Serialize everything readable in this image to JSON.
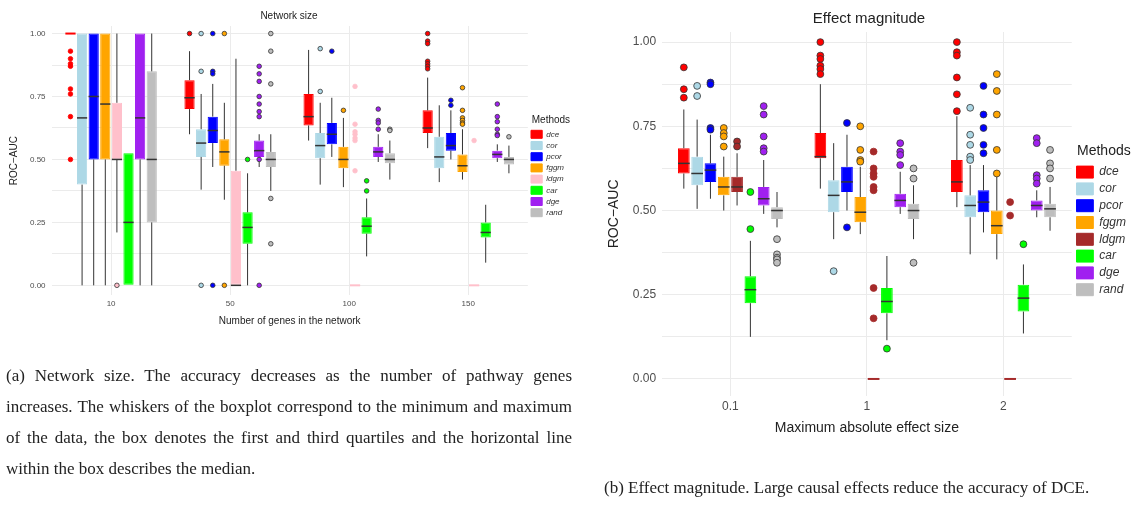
{
  "chart_data": [
    {
      "type": "box",
      "title": "Network size",
      "xlabel": "Number of genes in the network",
      "ylabel": "ROC−AUC",
      "legend_title": "Methods",
      "legend": "right",
      "grid": true,
      "categories": [
        "10",
        "50",
        "100",
        "150"
      ],
      "ylim": [
        -0.04,
        1.03
      ],
      "yticks": [
        {
          "value": 0,
          "label": "0.00"
        },
        {
          "value": 0.125,
          "label": null
        },
        {
          "value": 0.25,
          "label": "0.25"
        },
        {
          "value": 0.375,
          "label": null
        },
        {
          "value": 0.5,
          "label": "0.50"
        },
        {
          "value": 0.625,
          "label": null
        },
        {
          "value": 0.75,
          "label": "0.75"
        },
        {
          "value": 0.875,
          "label": null
        },
        {
          "value": 1,
          "label": "1.00"
        }
      ],
      "series": [
        {
          "name": "dce",
          "color": "#ff0000",
          "boxes": [
            {
              "low": 1,
              "q1": 1,
              "median": 1,
              "q3": 1,
              "high": 1,
              "outliers": [
                0.93,
                0.9,
                0.88,
                0.87,
                0.78,
                0.76,
                0.67,
                0.5
              ]
            },
            {
              "low": 0.6,
              "q1": 0.7,
              "median": 0.745,
              "q3": 0.815,
              "high": 0.93,
              "outliers": [
                1
              ]
            },
            {
              "low": 0.575,
              "q1": 0.635,
              "median": 0.67,
              "q3": 0.76,
              "high": 0.935
            },
            {
              "low": 0.545,
              "q1": 0.605,
              "median": 0.625,
              "q3": 0.695,
              "high": 0.825,
              "outliers": [
                1,
                0.97,
                0.96,
                0.89,
                0.88,
                0.87,
                0.86
              ]
            }
          ]
        },
        {
          "name": "cor",
          "color": "#add8e6",
          "boxes": [
            {
              "low": 0,
              "q1": 0.4,
              "median": 0.665,
              "q3": 1,
              "high": 1
            },
            {
              "low": 0.38,
              "q1": 0.51,
              "median": 0.565,
              "q3": 0.62,
              "high": 0.76,
              "outliers": [
                1,
                0.85,
                0
              ]
            },
            {
              "low": 0.4,
              "q1": 0.505,
              "median": 0.555,
              "q3": 0.605,
              "high": 0.725,
              "outliers": [
                0.94,
                0.77
              ]
            },
            {
              "low": 0.41,
              "q1": 0.465,
              "median": 0.51,
              "q3": 0.59,
              "high": 0.715
            }
          ]
        },
        {
          "name": "pcor",
          "color": "#0000ff",
          "boxes": [
            {
              "low": 0,
              "q1": 0.5,
              "median": 0.75,
              "q3": 1,
              "high": 1
            },
            {
              "low": 0.47,
              "q1": 0.565,
              "median": 0.615,
              "q3": 0.67,
              "high": 0.8,
              "outliers": [
                1,
                0.85,
                0.84,
                0
              ]
            },
            {
              "low": 0.51,
              "q1": 0.56,
              "median": 0.6,
              "q3": 0.645,
              "high": 0.745,
              "outliers": [
                0.93
              ]
            },
            {
              "low": 0.5,
              "q1": 0.535,
              "median": 0.555,
              "q3": 0.605,
              "high": 0.695,
              "outliers": [
                0.735,
                0.715
              ]
            }
          ]
        },
        {
          "name": "fggm",
          "color": "#ffa500",
          "boxes": [
            {
              "low": 0,
              "q1": 0.5,
              "median": 0.72,
              "q3": 1,
              "high": 1
            },
            {
              "low": 0.34,
              "q1": 0.475,
              "median": 0.53,
              "q3": 0.58,
              "high": 0.725,
              "outliers": [
                1,
                0
              ]
            },
            {
              "low": 0.39,
              "q1": 0.465,
              "median": 0.5,
              "q3": 0.55,
              "high": 0.665,
              "outliers": [
                0.695
              ]
            },
            {
              "low": 0.42,
              "q1": 0.45,
              "median": 0.475,
              "q3": 0.52,
              "high": 0.62,
              "outliers": [
                0.785,
                0.695,
                0.665,
                0.655,
                0.645,
                0.64
              ]
            }
          ]
        },
        {
          "name": "ldgm",
          "color": "#ffc0cb",
          "boxes": [
            {
              "low": 0.21,
              "q1": 0.5,
              "median": 0.5,
              "q3": 0.725,
              "high": 1,
              "outliers": [
                0
              ]
            },
            {
              "low": 0,
              "q1": 0,
              "median": 0,
              "q3": 0.455,
              "high": 0.9
            },
            {
              "low": 0,
              "q1": 0,
              "median": 0,
              "q3": 0,
              "high": 0,
              "outliers": [
                0.79,
                0.64,
                0.61,
                0.6,
                0.585,
                0.575,
                0.455
              ]
            },
            {
              "low": 0,
              "q1": 0,
              "median": 0,
              "q3": 0,
              "high": 0,
              "outliers": [
                0.575
              ]
            }
          ]
        },
        {
          "name": "car",
          "color": "#00ff00",
          "boxes": [
            {
              "low": 0,
              "q1": 0,
              "median": 0.25,
              "q3": 0.525,
              "high": 0.525
            },
            {
              "low": 0,
              "q1": 0.165,
              "median": 0.23,
              "q3": 0.29,
              "high": 0.445,
              "outliers": [
                0.5
              ]
            },
            {
              "low": 0.115,
              "q1": 0.205,
              "median": 0.235,
              "q3": 0.27,
              "high": 0.345,
              "outliers": [
                0.415,
                0.375
              ]
            },
            {
              "low": 0.09,
              "q1": 0.19,
              "median": 0.21,
              "q3": 0.25,
              "high": 0.32
            }
          ]
        },
        {
          "name": "dge",
          "color": "#a020f0",
          "boxes": [
            {
              "low": 0,
              "q1": 0.5,
              "median": 0.665,
              "q3": 1,
              "high": 1
            },
            {
              "low": 0.47,
              "q1": 0.51,
              "median": 0.535,
              "q3": 0.575,
              "high": 0.6,
              "outliers": [
                0.87,
                0.84,
                0.81,
                0.75,
                0.72,
                0.69,
                0.67,
                0.5,
                0
              ]
            },
            {
              "low": 0.49,
              "q1": 0.51,
              "median": 0.53,
              "q3": 0.55,
              "high": 0.6,
              "outliers": [
                0.7,
                0.655,
                0.645,
                0.62
              ]
            },
            {
              "low": 0.49,
              "q1": 0.505,
              "median": 0.52,
              "q3": 0.535,
              "high": 0.56,
              "outliers": [
                0.72,
                0.67,
                0.65,
                0.62,
                0.6,
                0.595
              ]
            }
          ]
        },
        {
          "name": "rand",
          "color": "#bebebe",
          "boxes": [
            {
              "low": 0,
              "q1": 0.25,
              "median": 0.5,
              "q3": 0.85,
              "high": 1
            },
            {
              "low": 0.375,
              "q1": 0.47,
              "median": 0.5,
              "q3": 0.53,
              "high": 0.6,
              "outliers": [
                1,
                0.93,
                0.8,
                0.345,
                0.165
              ]
            },
            {
              "low": 0.42,
              "q1": 0.485,
              "median": 0.5,
              "q3": 0.525,
              "high": 0.575,
              "outliers": [
                0.62,
                0.615
              ]
            },
            {
              "low": 0.445,
              "q1": 0.48,
              "median": 0.5,
              "q3": 0.51,
              "high": 0.555,
              "outliers": [
                0.59
              ]
            }
          ]
        }
      ],
      "annotations": [
        "(a) Network size. The accuracy decreases as the number of pathway genes increases. The whiskers of the boxplot correspond to the minimum and maximum of the data, the box denotes the first and third quartiles and the horizontal line within the box describes the median."
      ]
    },
    {
      "type": "box",
      "title": "Effect magnitude",
      "xlabel": "Maximum absolute effect size",
      "ylabel": "ROC−AUC",
      "legend_title": "Methods",
      "legend": "right",
      "grid": true,
      "categories": [
        "0.1",
        "1",
        "2"
      ],
      "ylim": [
        -0.05,
        1.03
      ],
      "yticks": [
        {
          "value": 0,
          "label": "0.00"
        },
        {
          "value": 0.125,
          "label": null
        },
        {
          "value": 0.25,
          "label": "0.25"
        },
        {
          "value": 0.375,
          "label": null
        },
        {
          "value": 0.5,
          "label": "0.50"
        },
        {
          "value": 0.625,
          "label": null
        },
        {
          "value": 0.75,
          "label": "0.75"
        },
        {
          "value": 0.875,
          "label": null
        },
        {
          "value": 1,
          "label": "1.00"
        }
      ],
      "series": [
        {
          "name": "dce",
          "color": "#ff0000",
          "boxes": [
            {
              "low": 0.565,
              "q1": 0.61,
              "median": 0.64,
              "q3": 0.685,
              "high": 0.8,
              "outliers": [
                0.925,
                0.86,
                0.835
              ]
            },
            {
              "low": 0.565,
              "q1": 0.655,
              "median": 0.66,
              "q3": 0.73,
              "high": 0.875,
              "outliers": [
                1,
                0.96,
                0.95,
                0.93,
                0.92,
                0.905
              ]
            },
            {
              "low": 0.51,
              "q1": 0.555,
              "median": 0.585,
              "q3": 0.65,
              "high": 0.78,
              "outliers": [
                1,
                0.97,
                0.96,
                0.895,
                0.845,
                0.795
              ]
            }
          ]
        },
        {
          "name": "cor",
          "color": "#add8e6",
          "boxes": [
            {
              "low": 0.505,
              "q1": 0.575,
              "median": 0.61,
              "q3": 0.66,
              "high": 0.77,
              "outliers": [
                0.87,
                0.84
              ]
            },
            {
              "low": 0.415,
              "q1": 0.495,
              "median": 0.545,
              "q3": 0.59,
              "high": 0.7,
              "outliers": [
                0.32
              ]
            },
            {
              "low": 0.37,
              "q1": 0.48,
              "median": 0.515,
              "q3": 0.545,
              "high": 0.635,
              "outliers": [
                0.805,
                0.725,
                0.695,
                0.66,
                0.65
              ]
            }
          ]
        },
        {
          "name": "pcor",
          "color": "#0000ff",
          "boxes": [
            {
              "low": 0.535,
              "q1": 0.585,
              "median": 0.62,
              "q3": 0.64,
              "high": 0.725,
              "outliers": [
                0.88,
                0.875,
                0.745,
                0.74
              ]
            },
            {
              "low": 0.5,
              "q1": 0.555,
              "median": 0.585,
              "q3": 0.63,
              "high": 0.725,
              "outliers": [
                0.76,
                0.45
              ]
            },
            {
              "low": 0.435,
              "q1": 0.495,
              "median": 0.525,
              "q3": 0.56,
              "high": 0.635,
              "outliers": [
                0.87,
                0.785,
                0.745,
                0.695,
                0.67
              ]
            }
          ]
        },
        {
          "name": "fggm",
          "color": "#ffa500",
          "boxes": [
            {
              "low": 0.5,
              "q1": 0.545,
              "median": 0.57,
              "q3": 0.6,
              "high": 0.66,
              "outliers": [
                0.745,
                0.73,
                0.72,
                0.69
              ]
            },
            {
              "low": 0.43,
              "q1": 0.465,
              "median": 0.495,
              "q3": 0.54,
              "high": 0.63,
              "outliers": [
                0.75,
                0.68,
                0.65,
                0.645
              ]
            },
            {
              "low": 0.355,
              "q1": 0.43,
              "median": 0.455,
              "q3": 0.5,
              "high": 0.6,
              "outliers": [
                0.905,
                0.855,
                0.785,
                0.68,
                0.61
              ]
            }
          ]
        },
        {
          "name": "ldgm",
          "color": "#a52a2a",
          "boxes": [
            {
              "low": 0.515,
              "q1": 0.555,
              "median": 0.57,
              "q3": 0.6,
              "high": 0.67,
              "outliers": [
                0.705,
                0.69
              ]
            },
            {
              "low": 0,
              "q1": 0,
              "median": 0,
              "q3": 0,
              "high": 0,
              "outliers": [
                0.675,
                0.625,
                0.61,
                0.6,
                0.57,
                0.56,
                0.27,
                0.18
              ]
            },
            {
              "low": 0,
              "q1": 0,
              "median": 0,
              "q3": 0,
              "high": 0,
              "outliers": [
                0.525,
                0.485
              ]
            }
          ]
        },
        {
          "name": "car",
          "color": "#00ff00",
          "boxes": [
            {
              "low": 0.125,
              "q1": 0.225,
              "median": 0.265,
              "q3": 0.305,
              "high": 0.41,
              "outliers": [
                0.555,
                0.445
              ]
            },
            {
              "low": 0.115,
              "q1": 0.195,
              "median": 0.23,
              "q3": 0.27,
              "high": 0.365,
              "outliers": [
                0.09
              ]
            },
            {
              "low": 0.135,
              "q1": 0.2,
              "median": 0.24,
              "q3": 0.28,
              "high": 0.34,
              "outliers": [
                0.4
              ]
            }
          ]
        },
        {
          "name": "dge",
          "color": "#a020f0",
          "boxes": [
            {
              "low": 0.49,
              "q1": 0.515,
              "median": 0.535,
              "q3": 0.57,
              "high": 0.65,
              "outliers": [
                0.81,
                0.785,
                0.72,
                0.685,
                0.675
              ]
            },
            {
              "low": 0.49,
              "q1": 0.51,
              "median": 0.53,
              "q3": 0.55,
              "high": 0.615,
              "outliers": [
                0.7,
                0.675,
                0.665,
                0.635
              ]
            },
            {
              "low": 0.48,
              "q1": 0.5,
              "median": 0.515,
              "q3": 0.53,
              "high": 0.56,
              "outliers": [
                0.715,
                0.7,
                0.605,
                0.595,
                0.58
              ]
            }
          ]
        },
        {
          "name": "rand",
          "color": "#bebebe",
          "boxes": [
            {
              "low": 0.45,
              "q1": 0.475,
              "median": 0.5,
              "q3": 0.51,
              "high": 0.555,
              "outliers": [
                0.415,
                0.37,
                0.36,
                0.355,
                0.345
              ]
            },
            {
              "low": 0.415,
              "q1": 0.475,
              "median": 0.5,
              "q3": 0.52,
              "high": 0.575,
              "outliers": [
                0.625,
                0.595,
                0.345
              ]
            },
            {
              "low": 0.44,
              "q1": 0.48,
              "median": 0.505,
              "q3": 0.52,
              "high": 0.57,
              "outliers": [
                0.68,
                0.64,
                0.625,
                0.595
              ]
            }
          ]
        }
      ],
      "annotations": [
        "(b) Effect magnitude. Large causal effects reduce the accuracy of DCE."
      ]
    }
  ]
}
